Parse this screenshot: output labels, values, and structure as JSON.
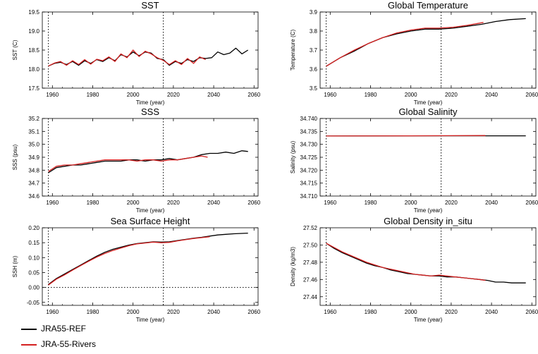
{
  "colors": {
    "ref": "#000000",
    "rivers": "#d42020"
  },
  "legend": [
    {
      "label": "JRA55-REF",
      "color": "#000000"
    },
    {
      "label": "JRA-55-Rivers",
      "color": "#d42020"
    }
  ],
  "chart_data": [
    {
      "type": "line",
      "title": "SST",
      "ylabel": "SST (C)",
      "xlabel": "Time (year)",
      "xlim": [
        1955,
        2062
      ],
      "ylim": [
        17.5,
        19.5
      ],
      "xticks": [
        "1960",
        "1980",
        "2000",
        "2020",
        "2040",
        "2060"
      ],
      "yticks": [
        "17.5",
        "18.0",
        "18.5",
        "19.0",
        "19.5"
      ],
      "ytick_values": [
        17.5,
        18.0,
        18.5,
        19.0,
        19.5
      ],
      "vlines": [
        1958,
        2015
      ],
      "grid": false,
      "series": [
        {
          "name": "JRA55-REF",
          "color": "#000000",
          "x": [
            1958,
            1961,
            1964,
            1967,
            1970,
            1973,
            1976,
            1979,
            1982,
            1985,
            1988,
            1991,
            1994,
            1997,
            2000,
            2003,
            2006,
            2009,
            2012,
            2015,
            2018,
            2021,
            2024,
            2027,
            2030,
            2033,
            2036,
            2039,
            2042,
            2045,
            2048,
            2051,
            2054,
            2057
          ],
          "y": [
            18.08,
            18.15,
            18.18,
            18.12,
            18.2,
            18.1,
            18.22,
            18.15,
            18.25,
            18.2,
            18.3,
            18.22,
            18.38,
            18.32,
            18.45,
            18.35,
            18.45,
            18.42,
            18.28,
            18.25,
            18.1,
            18.2,
            18.15,
            18.25,
            18.2,
            18.3,
            18.28,
            18.3,
            18.45,
            18.38,
            18.42,
            18.55,
            18.4,
            18.5
          ]
        },
        {
          "name": "JRA-55-Rivers",
          "color": "#d42020",
          "x": [
            1958,
            1961,
            1964,
            1967,
            1970,
            1973,
            1976,
            1979,
            1982,
            1985,
            1988,
            1991,
            1994,
            1997,
            2000,
            2003,
            2006,
            2009,
            2012,
            2015,
            2018,
            2021,
            2024,
            2027,
            2030,
            2033,
            2036
          ],
          "y": [
            18.08,
            18.16,
            18.2,
            18.1,
            18.22,
            18.12,
            18.25,
            18.13,
            18.26,
            18.22,
            18.32,
            18.2,
            18.4,
            18.3,
            18.5,
            18.33,
            18.47,
            18.4,
            18.3,
            18.23,
            18.12,
            18.22,
            18.12,
            18.28,
            18.15,
            18.32,
            18.25
          ]
        }
      ]
    },
    {
      "type": "line",
      "title": "Global Temperature",
      "ylabel": "Temperature (C)",
      "xlabel": "Time (year)",
      "xlim": [
        1955,
        2062
      ],
      "ylim": [
        3.5,
        3.9
      ],
      "xticks": [
        "1960",
        "1980",
        "2000",
        "2020",
        "2040",
        "2060"
      ],
      "yticks": [
        "3.5",
        "3.6",
        "3.7",
        "3.8",
        "3.9"
      ],
      "ytick_values": [
        3.5,
        3.6,
        3.7,
        3.8,
        3.9
      ],
      "vlines": [
        1958,
        2015
      ],
      "grid": false,
      "series": [
        {
          "name": "JRA55-REF",
          "color": "#000000",
          "x": [
            1958,
            1965,
            1972,
            1979,
            1986,
            1993,
            2000,
            2007,
            2014,
            2021,
            2028,
            2035,
            2042,
            2049,
            2057
          ],
          "y": [
            3.615,
            3.66,
            3.695,
            3.735,
            3.765,
            3.785,
            3.8,
            3.81,
            3.81,
            3.815,
            3.825,
            3.835,
            3.85,
            3.86,
            3.865
          ]
        },
        {
          "name": "JRA-55-Rivers",
          "color": "#d42020",
          "x": [
            1958,
            1965,
            1972,
            1979,
            1986,
            1993,
            2000,
            2007,
            2014,
            2021,
            2028,
            2036
          ],
          "y": [
            3.615,
            3.66,
            3.7,
            3.735,
            3.765,
            3.79,
            3.805,
            3.815,
            3.815,
            3.82,
            3.83,
            3.845
          ]
        }
      ]
    },
    {
      "type": "line",
      "title": "SSS",
      "ylabel": "SSS (psu)",
      "xlabel": "Time (year)",
      "xlim": [
        1955,
        2062
      ],
      "ylim": [
        34.6,
        35.2
      ],
      "xticks": [
        "1960",
        "1980",
        "2000",
        "2020",
        "2040",
        "2060"
      ],
      "yticks": [
        "34.6",
        "34.7",
        "34.8",
        "34.9",
        "35.0",
        "35.1",
        "35.2"
      ],
      "ytick_values": [
        34.6,
        34.7,
        34.8,
        34.9,
        35.0,
        35.1,
        35.2
      ],
      "vlines": [
        1958,
        2015
      ],
      "grid": false,
      "series": [
        {
          "name": "JRA55-REF",
          "color": "#000000",
          "x": [
            1958,
            1962,
            1966,
            1970,
            1974,
            1978,
            1982,
            1986,
            1990,
            1994,
            1998,
            2002,
            2006,
            2010,
            2014,
            2018,
            2022,
            2026,
            2030,
            2034,
            2038,
            2042,
            2046,
            2050,
            2054,
            2057
          ],
          "y": [
            34.78,
            34.82,
            34.83,
            34.84,
            34.84,
            34.85,
            34.86,
            34.87,
            34.87,
            34.87,
            34.88,
            34.88,
            34.87,
            34.88,
            34.88,
            34.89,
            34.88,
            34.89,
            34.9,
            34.92,
            34.93,
            34.93,
            34.94,
            34.93,
            34.95,
            34.945
          ]
        },
        {
          "name": "JRA-55-Rivers",
          "color": "#d42020",
          "x": [
            1958,
            1962,
            1966,
            1970,
            1974,
            1978,
            1982,
            1986,
            1990,
            1994,
            1998,
            2002,
            2006,
            2010,
            2014,
            2018,
            2022,
            2026,
            2030,
            2034,
            2037
          ],
          "y": [
            34.79,
            34.83,
            34.84,
            34.84,
            34.85,
            34.86,
            34.87,
            34.88,
            34.88,
            34.88,
            34.88,
            34.87,
            34.88,
            34.88,
            34.87,
            34.88,
            34.88,
            34.89,
            34.9,
            34.91,
            34.9
          ]
        }
      ]
    },
    {
      "type": "line",
      "title": "Global Salinity",
      "ylabel": "Salinity (psu)",
      "xlabel": "Time (year)",
      "xlim": [
        1955,
        2062
      ],
      "ylim": [
        34.71,
        34.74
      ],
      "xticks": [
        "1960",
        "1980",
        "2000",
        "2020",
        "2040",
        "2060"
      ],
      "yticks": [
        "34.710",
        "34.715",
        "34.720",
        "34.725",
        "34.730",
        "34.735",
        "34.740"
      ],
      "ytick_values": [
        34.71,
        34.715,
        34.72,
        34.725,
        34.73,
        34.735,
        34.74
      ],
      "vlines": [
        1958,
        2015
      ],
      "grid": false,
      "series": [
        {
          "name": "JRA55-REF",
          "color": "#000000",
          "x": [
            1958,
            2000,
            2030,
            2057
          ],
          "y": [
            34.7332,
            34.7333,
            34.7333,
            34.7333
          ]
        },
        {
          "name": "JRA-55-Rivers",
          "color": "#d42020",
          "x": [
            1958,
            2000,
            2037
          ],
          "y": [
            34.7332,
            34.7333,
            34.7334
          ]
        }
      ]
    },
    {
      "type": "line",
      "title": "Sea Surface Height",
      "ylabel": "SSH (m)",
      "xlabel": "Time (year)",
      "xlim": [
        1955,
        2062
      ],
      "ylim": [
        -0.06,
        0.2
      ],
      "xticks": [
        "1960",
        "1980",
        "2000",
        "2020",
        "2040",
        "2060"
      ],
      "yticks": [
        "-0.05",
        "0.00",
        "0.05",
        "0.10",
        "0.15",
        "0.20"
      ],
      "ytick_values": [
        -0.05,
        0.0,
        0.05,
        0.1,
        0.15,
        0.2
      ],
      "vlines": [
        1958,
        2015
      ],
      "hlines": [
        0
      ],
      "grid": false,
      "series": [
        {
          "name": "JRA55-REF",
          "color": "#000000",
          "x": [
            1958,
            1962,
            1966,
            1970,
            1974,
            1978,
            1982,
            1986,
            1990,
            1994,
            1998,
            2002,
            2006,
            2010,
            2014,
            2018,
            2022,
            2026,
            2030,
            2034,
            2038,
            2042,
            2046,
            2050,
            2054,
            2057
          ],
          "y": [
            0.01,
            0.03,
            0.045,
            0.06,
            0.075,
            0.09,
            0.105,
            0.118,
            0.128,
            0.135,
            0.142,
            0.147,
            0.15,
            0.153,
            0.152,
            0.153,
            0.157,
            0.161,
            0.165,
            0.168,
            0.172,
            0.176,
            0.178,
            0.18,
            0.181,
            0.182
          ]
        },
        {
          "name": "JRA-55-Rivers",
          "color": "#d42020",
          "x": [
            1958,
            1962,
            1966,
            1970,
            1974,
            1978,
            1982,
            1986,
            1990,
            1994,
            1998,
            2002,
            2006,
            2010,
            2014,
            2018,
            2022,
            2026,
            2030,
            2034,
            2038
          ],
          "y": [
            0.008,
            0.028,
            0.042,
            0.058,
            0.073,
            0.088,
            0.102,
            0.114,
            0.124,
            0.132,
            0.14,
            0.146,
            0.149,
            0.152,
            0.15,
            0.151,
            0.156,
            0.16,
            0.164,
            0.167,
            0.17
          ]
        }
      ]
    },
    {
      "type": "line",
      "title": "Global Density in_situ",
      "ylabel": "Density (kg/m3)",
      "xlabel": "Time (year)",
      "xlim": [
        1955,
        2062
      ],
      "ylim": [
        27.43,
        27.52
      ],
      "xticks": [
        "1960",
        "1980",
        "2000",
        "2020",
        "2040",
        "2060"
      ],
      "yticks": [
        "27.44",
        "27.46",
        "27.48",
        "27.50",
        "27.52"
      ],
      "ytick_values": [
        27.44,
        27.46,
        27.48,
        27.5,
        27.52
      ],
      "vlines": [
        1958,
        2015
      ],
      "grid": false,
      "series": [
        {
          "name": "JRA55-REF",
          "color": "#000000",
          "x": [
            1958,
            1962,
            1966,
            1970,
            1974,
            1978,
            1982,
            1986,
            1990,
            1994,
            1998,
            2002,
            2006,
            2010,
            2014,
            2018,
            2022,
            2026,
            2030,
            2034,
            2038,
            2042,
            2046,
            2050,
            2054,
            2057
          ],
          "y": [
            27.502,
            27.496,
            27.491,
            27.487,
            27.483,
            27.479,
            27.476,
            27.474,
            27.471,
            27.469,
            27.467,
            27.466,
            27.465,
            27.464,
            27.464,
            27.463,
            27.463,
            27.462,
            27.461,
            27.46,
            27.459,
            27.457,
            27.457,
            27.456,
            27.456,
            27.456
          ]
        },
        {
          "name": "JRA-55-Rivers",
          "color": "#d42020",
          "x": [
            1958,
            1962,
            1966,
            1970,
            1974,
            1978,
            1982,
            1986,
            1990,
            1994,
            1998,
            2002,
            2006,
            2010,
            2014,
            2018,
            2022,
            2026,
            2030,
            2034,
            2037
          ],
          "y": [
            27.502,
            27.497,
            27.492,
            27.488,
            27.484,
            27.48,
            27.477,
            27.474,
            27.472,
            27.47,
            27.468,
            27.466,
            27.465,
            27.464,
            27.465,
            27.464,
            27.463,
            27.462,
            27.461,
            27.46,
            27.459
          ]
        }
      ]
    }
  ]
}
